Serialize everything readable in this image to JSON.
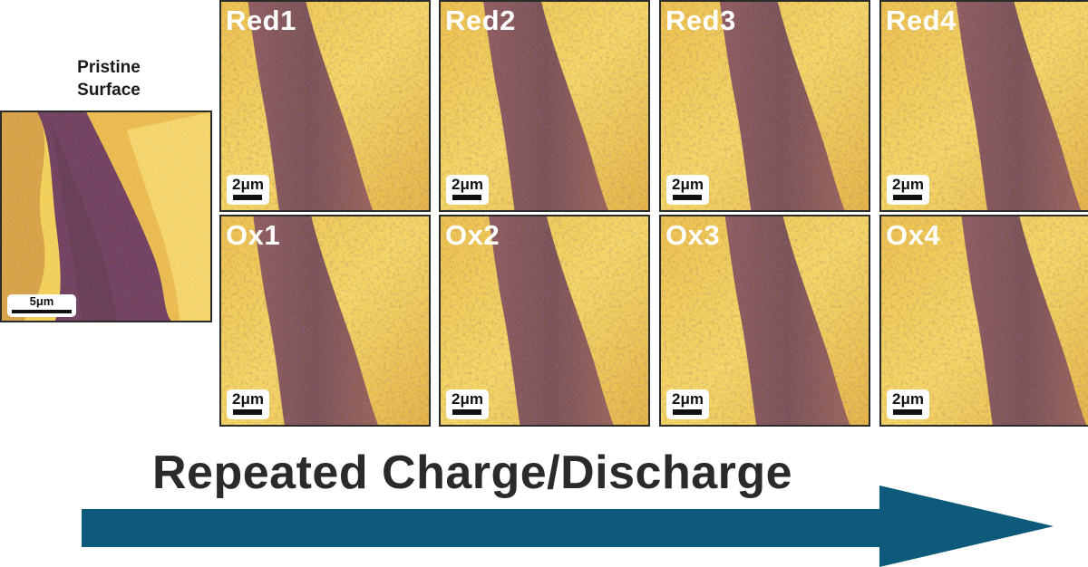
{
  "pristine": {
    "title_line1": "Pristine",
    "title_line2": "Surface",
    "scale": "5μm"
  },
  "panels": [
    {
      "label": "Red1",
      "scale": "2μm"
    },
    {
      "label": "Red2",
      "scale": "2μm"
    },
    {
      "label": "Red3",
      "scale": "2μm"
    },
    {
      "label": "Red4",
      "scale": "2μm"
    },
    {
      "label": "Ox1",
      "scale": "2μm"
    },
    {
      "label": "Ox2",
      "scale": "2μm"
    },
    {
      "label": "Ox3",
      "scale": "2μm"
    },
    {
      "label": "Ox4",
      "scale": "2μm"
    }
  ],
  "caption": "Repeated Charge/Discharge",
  "colors": {
    "arrow": "#0d5a7a",
    "bright": "#f2d15c",
    "mid": "#b8782e",
    "dark": "#3d1452",
    "frame": "#2b2b2b"
  }
}
